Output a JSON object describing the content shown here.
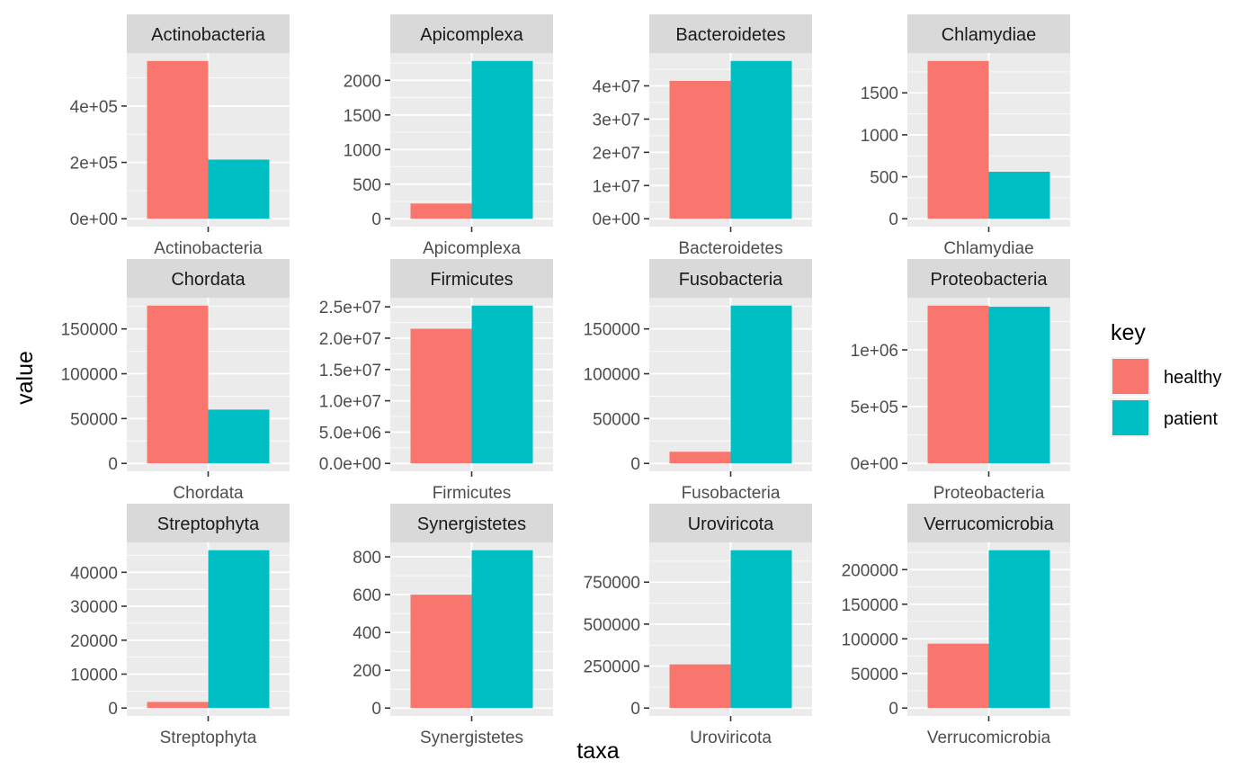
{
  "chart_data": {
    "type": "bar",
    "xlabel": "taxa",
    "ylabel": "value",
    "legend": {
      "title": "key",
      "position": "right",
      "entries": [
        {
          "label": "healthy",
          "color": "#F8766D"
        },
        {
          "label": "patient",
          "color": "#00BFC4"
        }
      ]
    },
    "series_names": [
      "healthy",
      "patient"
    ],
    "colors": {
      "healthy": "#F8766D",
      "patient": "#00BFC4"
    },
    "grid": true,
    "facets": [
      {
        "name": "Actinobacteria",
        "values": [
          560000,
          210000
        ],
        "ylim": [
          -28000,
          588000
        ],
        "ticks": [
          0,
          200000,
          400000
        ],
        "tick_labels": [
          "0e+00",
          "2e+05",
          "4e+05"
        ]
      },
      {
        "name": "Apicomplexa",
        "values": [
          220,
          2280
        ],
        "ylim": [
          -114,
          2394
        ],
        "ticks": [
          0,
          500,
          1000,
          1500,
          2000
        ],
        "tick_labels": [
          "0",
          "500",
          "1000",
          "1500",
          "2000"
        ]
      },
      {
        "name": "Bacteroidetes",
        "values": [
          41500000,
          47500000
        ],
        "ylim": [
          -2375000,
          49875000
        ],
        "ticks": [
          0,
          10000000,
          20000000,
          30000000,
          40000000
        ],
        "tick_labels": [
          "0e+00",
          "1e+07",
          "2e+07",
          "3e+07",
          "4e+07"
        ]
      },
      {
        "name": "Chlamydiae",
        "values": [
          1880,
          560
        ],
        "ylim": [
          -94,
          1974
        ],
        "ticks": [
          0,
          500,
          1000,
          1500
        ],
        "tick_labels": [
          "0",
          "500",
          "1000",
          "1500"
        ]
      },
      {
        "name": "Chordata",
        "values": [
          176000,
          60000
        ],
        "ylim": [
          -8800,
          184800
        ],
        "ticks": [
          0,
          50000,
          100000,
          150000
        ],
        "tick_labels": [
          "0",
          "50000",
          "100000",
          "150000"
        ]
      },
      {
        "name": "Firmicutes",
        "values": [
          21500000,
          25200000
        ],
        "ylim": [
          -1260000,
          26460000
        ],
        "ticks": [
          0,
          5000000,
          10000000,
          15000000,
          20000000,
          25000000
        ],
        "tick_labels": [
          "0.0e+00",
          "5.0e+06",
          "1.0e+07",
          "1.5e+07",
          "2.0e+07",
          "2.5e+07"
        ]
      },
      {
        "name": "Fusobacteria",
        "values": [
          13000,
          176000
        ],
        "ylim": [
          -8800,
          184800
        ],
        "ticks": [
          0,
          50000,
          100000,
          150000
        ],
        "tick_labels": [
          "0",
          "50000",
          "100000",
          "150000"
        ]
      },
      {
        "name": "Proteobacteria",
        "values": [
          1390000,
          1380000
        ],
        "ylim": [
          -69500,
          1459500
        ],
        "ticks": [
          0,
          500000,
          1000000
        ],
        "tick_labels": [
          "0e+00",
          "5e+05",
          "1e+06"
        ]
      },
      {
        "name": "Streptophyta",
        "values": [
          1800,
          46500
        ],
        "ylim": [
          -2325,
          48825
        ],
        "ticks": [
          0,
          10000,
          20000,
          30000,
          40000
        ],
        "tick_labels": [
          "0",
          "10000",
          "20000",
          "30000",
          "40000"
        ]
      },
      {
        "name": "Synergistetes",
        "values": [
          600,
          835
        ],
        "ylim": [
          -41.75,
          876.75
        ],
        "ticks": [
          0,
          200,
          400,
          600,
          800
        ],
        "tick_labels": [
          "0",
          "200",
          "400",
          "600",
          "800"
        ]
      },
      {
        "name": "Uroviricota",
        "values": [
          260000,
          940000
        ],
        "ylim": [
          -47000,
          987000
        ],
        "ticks": [
          0,
          250000,
          500000,
          750000
        ],
        "tick_labels": [
          "0",
          "250000",
          "500000",
          "750000"
        ]
      },
      {
        "name": "Verrucomicrobia",
        "values": [
          93000,
          228000
        ],
        "ylim": [
          -11400,
          239400
        ],
        "ticks": [
          0,
          50000,
          100000,
          150000,
          200000
        ],
        "tick_labels": [
          "0",
          "50000",
          "100000",
          "150000",
          "200000"
        ]
      }
    ]
  }
}
